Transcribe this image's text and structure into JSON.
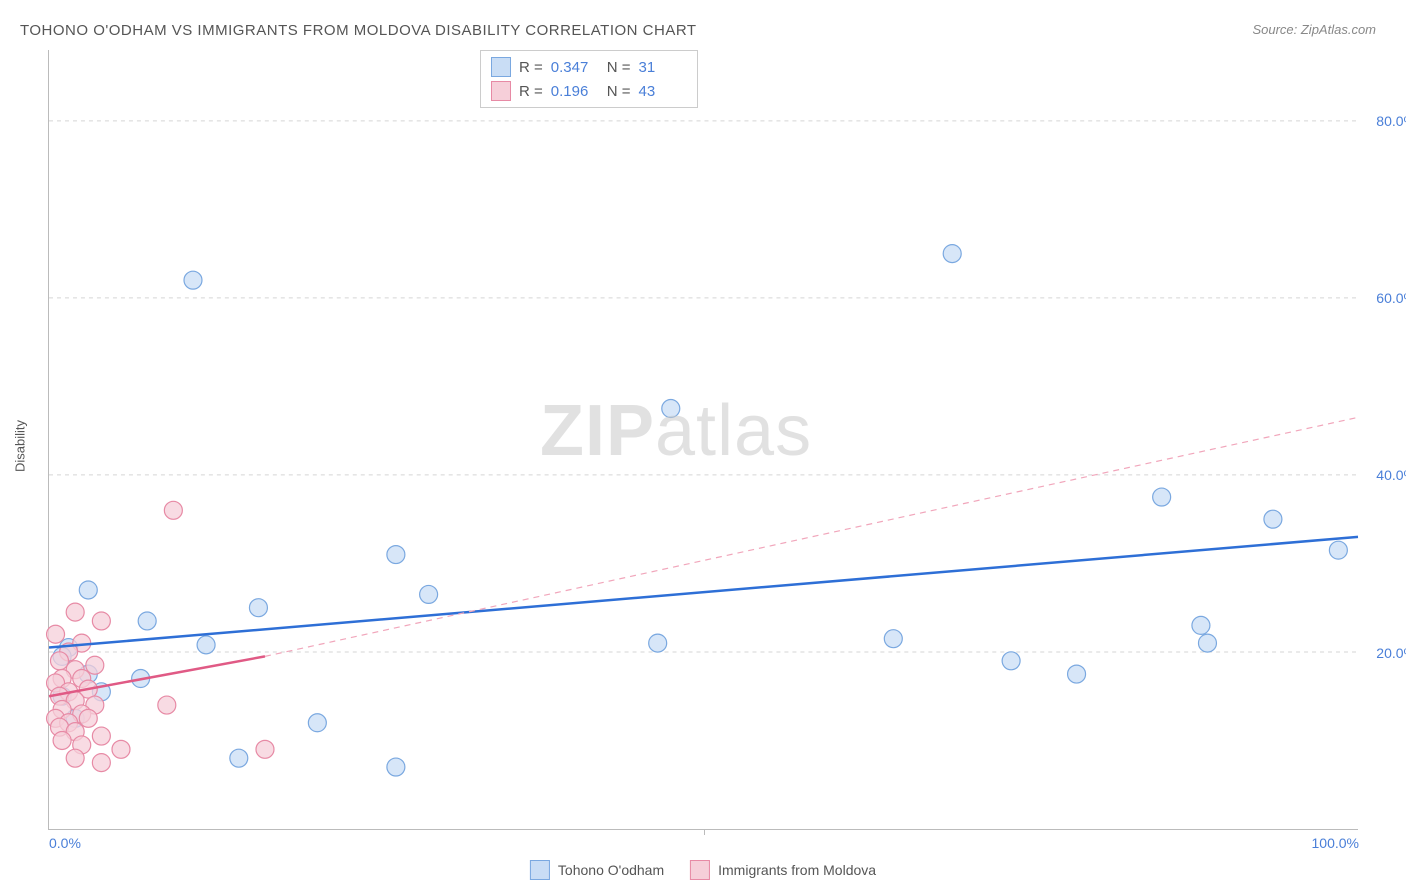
{
  "title": "TOHONO O'ODHAM VS IMMIGRANTS FROM MOLDOVA DISABILITY CORRELATION CHART",
  "source": "Source: ZipAtlas.com",
  "watermark_zip": "ZIP",
  "watermark_atlas": "atlas",
  "ylabel": "Disability",
  "chart": {
    "type": "scatter",
    "background_color": "#ffffff",
    "grid_color": "#d5d5d5",
    "grid_style": "dashed",
    "axis_color": "#bbbbbb",
    "xlim": [
      0,
      100
    ],
    "ylim": [
      0,
      88
    ],
    "ytick_step": 20,
    "ytick_labels": [
      "20.0%",
      "40.0%",
      "60.0%",
      "80.0%"
    ],
    "ytick_values": [
      20,
      40,
      60,
      80
    ],
    "xtick_labels": [
      "0.0%",
      "100.0%"
    ],
    "xtick_values": [
      0,
      100
    ],
    "xtick_minor": [
      50
    ],
    "tick_label_color": "#4a7fd8",
    "tick_label_fontsize": 14,
    "axis_label_color": "#555555",
    "axis_label_fontsize": 13,
    "title_color": "#555555",
    "title_fontsize": 15,
    "series": [
      {
        "name": "Tohono O'odham",
        "marker_color_fill": "#c9ddf5",
        "marker_color_stroke": "#7aa8e0",
        "marker_radius": 9,
        "regression_color": "#2e6fd6",
        "regression_width": 2.5,
        "regression_style": "solid",
        "regression_line": {
          "x1": 0,
          "y1": 20.5,
          "x2": 100,
          "y2": 33.0
        },
        "R": 0.347,
        "N": 31,
        "points": [
          {
            "x": 11.0,
            "y": 62.0
          },
          {
            "x": 69.0,
            "y": 65.0
          },
          {
            "x": 47.5,
            "y": 47.5
          },
          {
            "x": 46.5,
            "y": 21.0
          },
          {
            "x": 26.5,
            "y": 31.0
          },
          {
            "x": 29.0,
            "y": 26.5
          },
          {
            "x": 16.0,
            "y": 25.0
          },
          {
            "x": 7.5,
            "y": 23.5
          },
          {
            "x": 12.0,
            "y": 20.8
          },
          {
            "x": 3.0,
            "y": 27.0
          },
          {
            "x": 1.5,
            "y": 20.5
          },
          {
            "x": 1.0,
            "y": 19.5
          },
          {
            "x": 3.0,
            "y": 17.5
          },
          {
            "x": 7.0,
            "y": 17.0
          },
          {
            "x": 4.0,
            "y": 15.5
          },
          {
            "x": 1.0,
            "y": 15.0
          },
          {
            "x": 2.0,
            "y": 12.5
          },
          {
            "x": 14.5,
            "y": 8.0
          },
          {
            "x": 20.5,
            "y": 12.0
          },
          {
            "x": 26.5,
            "y": 7.0
          },
          {
            "x": 64.5,
            "y": 21.5
          },
          {
            "x": 73.5,
            "y": 19.0
          },
          {
            "x": 78.5,
            "y": 17.5
          },
          {
            "x": 85.0,
            "y": 37.5
          },
          {
            "x": 88.0,
            "y": 23.0
          },
          {
            "x": 88.5,
            "y": 21.0
          },
          {
            "x": 93.5,
            "y": 35.0
          },
          {
            "x": 98.5,
            "y": 31.5
          }
        ]
      },
      {
        "name": "Immigrants from Moldova",
        "marker_color_fill": "#f6cfd9",
        "marker_color_stroke": "#e78aa5",
        "marker_radius": 9,
        "regression_color": "#e05a85",
        "regression_width": 2.5,
        "regression_style": "solid",
        "regression_line": {
          "x1": 0,
          "y1": 15.0,
          "x2": 16.5,
          "y2": 19.5
        },
        "extrapolation_color": "#f1a6bb",
        "extrapolation_style": "dashed",
        "extrapolation_line": {
          "x1": 16.5,
          "y1": 19.5,
          "x2": 100,
          "y2": 46.5
        },
        "R": 0.196,
        "N": 43,
        "points": [
          {
            "x": 9.5,
            "y": 36.0
          },
          {
            "x": 2.0,
            "y": 24.5
          },
          {
            "x": 4.0,
            "y": 23.5
          },
          {
            "x": 0.5,
            "y": 22.0
          },
          {
            "x": 2.5,
            "y": 21.0
          },
          {
            "x": 1.5,
            "y": 20.0
          },
          {
            "x": 0.8,
            "y": 19.0
          },
          {
            "x": 2.0,
            "y": 18.0
          },
          {
            "x": 3.5,
            "y": 18.5
          },
          {
            "x": 1.0,
            "y": 17.0
          },
          {
            "x": 2.5,
            "y": 17.0
          },
          {
            "x": 0.5,
            "y": 16.5
          },
          {
            "x": 1.5,
            "y": 15.5
          },
          {
            "x": 3.0,
            "y": 15.8
          },
          {
            "x": 0.8,
            "y": 15.0
          },
          {
            "x": 2.0,
            "y": 14.5
          },
          {
            "x": 3.5,
            "y": 14.0
          },
          {
            "x": 1.0,
            "y": 13.5
          },
          {
            "x": 2.5,
            "y": 13.0
          },
          {
            "x": 0.5,
            "y": 12.5
          },
          {
            "x": 1.5,
            "y": 12.0
          },
          {
            "x": 3.0,
            "y": 12.5
          },
          {
            "x": 0.8,
            "y": 11.5
          },
          {
            "x": 2.0,
            "y": 11.0
          },
          {
            "x": 9.0,
            "y": 14.0
          },
          {
            "x": 4.0,
            "y": 10.5
          },
          {
            "x": 2.5,
            "y": 9.5
          },
          {
            "x": 1.0,
            "y": 10.0
          },
          {
            "x": 5.5,
            "y": 9.0
          },
          {
            "x": 2.0,
            "y": 8.0
          },
          {
            "x": 4.0,
            "y": 7.5
          },
          {
            "x": 16.5,
            "y": 9.0
          }
        ]
      }
    ]
  },
  "legend_top": {
    "r_label": "R =",
    "n_label": "N =",
    "rows": [
      {
        "swatch_fill": "#c9ddf5",
        "swatch_stroke": "#7aa8e0",
        "r": "0.347",
        "n": "31"
      },
      {
        "swatch_fill": "#f6cfd9",
        "swatch_stroke": "#e78aa5",
        "r": "0.196",
        "n": "43"
      }
    ]
  },
  "legend_bottom": [
    {
      "swatch_fill": "#c9ddf5",
      "swatch_stroke": "#7aa8e0",
      "label": "Tohono O'odham"
    },
    {
      "swatch_fill": "#f6cfd9",
      "swatch_stroke": "#e78aa5",
      "label": "Immigrants from Moldova"
    }
  ]
}
